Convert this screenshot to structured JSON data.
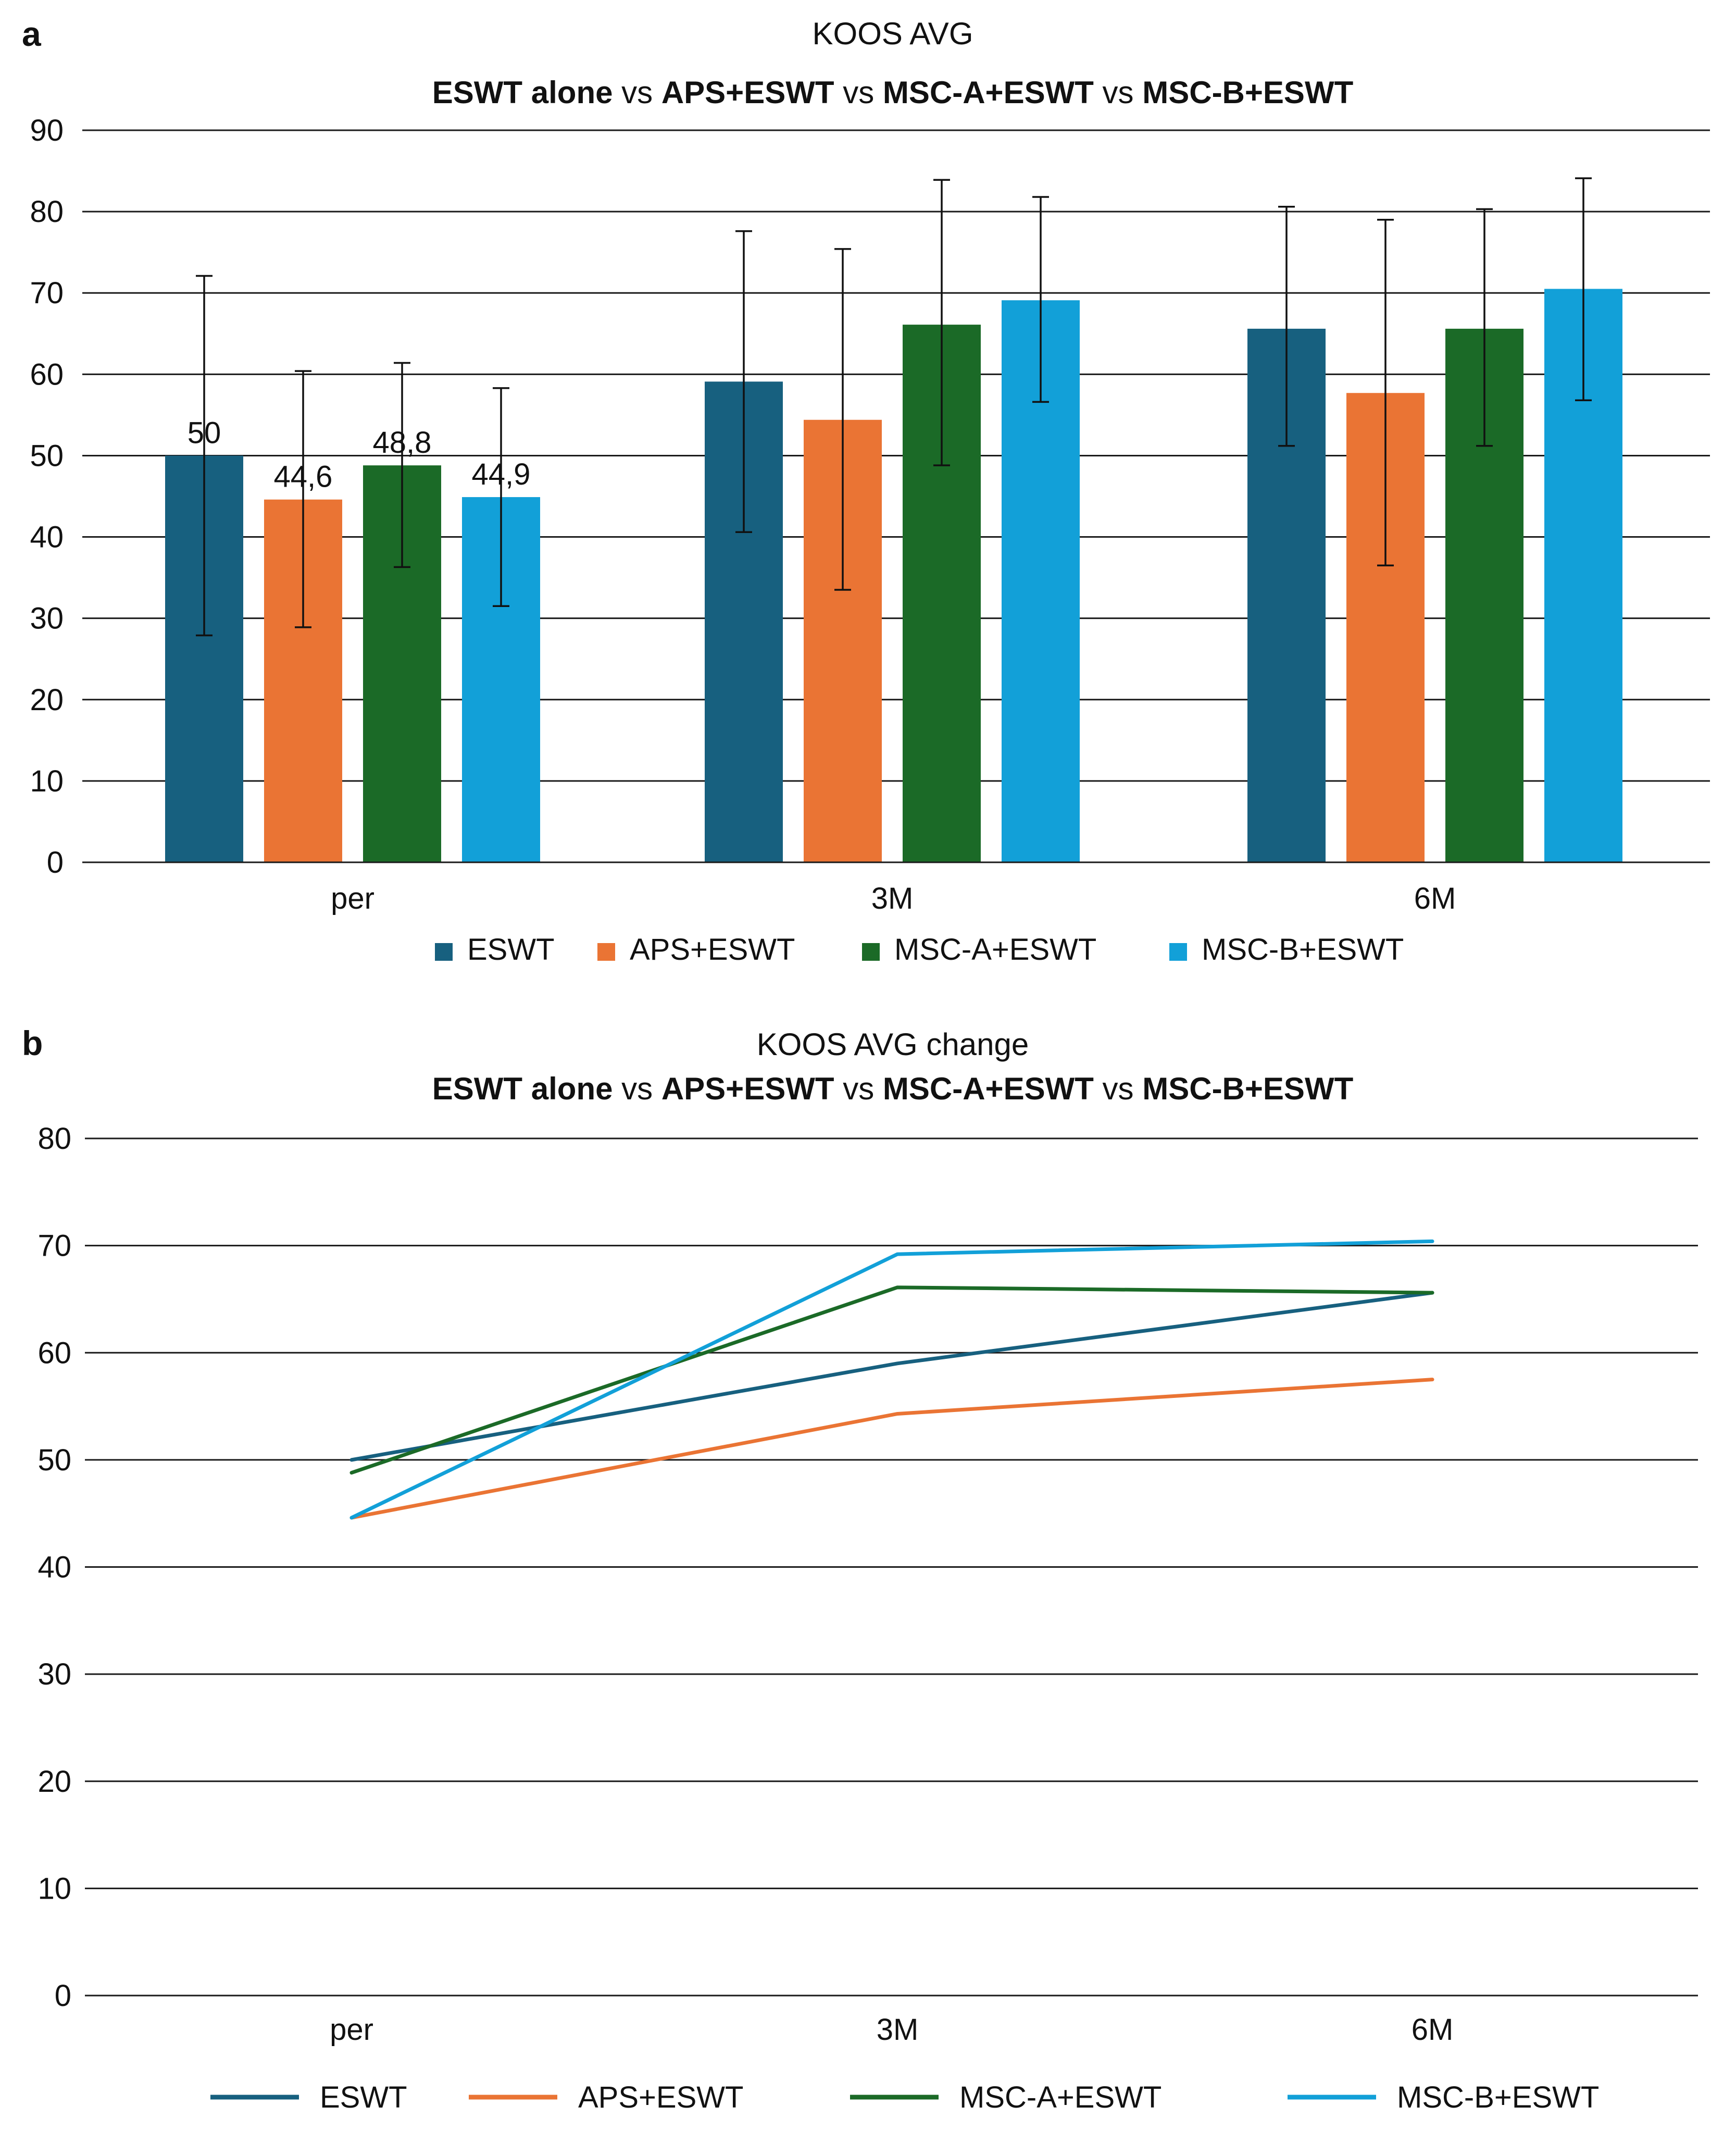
{
  "chart_data": [
    {
      "panel_label": "a",
      "type": "bar",
      "title": "KOOS AVG",
      "subtitle_parts": [
        {
          "text": "ESWT alone",
          "bold": true
        },
        {
          "text": " vs ",
          "bold": false
        },
        {
          "text": "APS+ESWT",
          "bold": true
        },
        {
          "text": " vs ",
          "bold": false
        },
        {
          "text": "MSC-A+ESWT",
          "bold": true
        },
        {
          "text": " vs ",
          "bold": false
        },
        {
          "text": "MSC-B+ESWT",
          "bold": true
        }
      ],
      "xlabel": "",
      "ylabel": "",
      "ylim": [
        0,
        90
      ],
      "yticks": [
        0,
        10,
        20,
        30,
        40,
        50,
        60,
        70,
        80,
        90
      ],
      "grid": true,
      "legend_position": "bottom",
      "categories": [
        "per",
        "3M",
        "6M"
      ],
      "series": [
        {
          "name": "ESWT",
          "color": "#17607f",
          "values": [
            50,
            59.1,
            65.6
          ],
          "err_low": [
            27.9,
            40.6,
            51.2
          ],
          "err_high": [
            72.1,
            77.6,
            80.6
          ],
          "labels": [
            "50",
            "",
            ""
          ]
        },
        {
          "name": "APS+ESWT",
          "color": "#ea7434",
          "values": [
            44.6,
            54.4,
            57.7
          ],
          "err_low": [
            28.9,
            33.5,
            36.5
          ],
          "err_high": [
            60.4,
            75.4,
            79.0
          ],
          "labels": [
            "44,6",
            "",
            ""
          ]
        },
        {
          "name": "MSC-A+ESWT",
          "color": "#1b6a27",
          "values": [
            48.8,
            66.1,
            65.6
          ],
          "err_low": [
            36.3,
            48.8,
            51.2
          ],
          "err_high": [
            61.4,
            83.9,
            80.3
          ],
          "labels": [
            "48,8",
            "",
            ""
          ]
        },
        {
          "name": "MSC-B+ESWT",
          "color": "#12a0d8",
          "values": [
            44.9,
            69.1,
            70.5
          ],
          "err_low": [
            31.5,
            56.6,
            56.8
          ],
          "err_high": [
            58.3,
            81.8,
            84.1
          ],
          "labels": [
            "44,9",
            "",
            ""
          ]
        }
      ]
    },
    {
      "panel_label": "b",
      "type": "line",
      "title": "KOOS AVG change",
      "subtitle_parts": [
        {
          "text": "ESWT alone",
          "bold": true
        },
        {
          "text": " vs ",
          "bold": false
        },
        {
          "text": "APS+ESWT",
          "bold": true
        },
        {
          "text": " vs ",
          "bold": false
        },
        {
          "text": "MSC-A+ESWT",
          "bold": true
        },
        {
          "text": " vs ",
          "bold": false
        },
        {
          "text": "MSC-B+ESWT",
          "bold": true
        }
      ],
      "xlabel": "",
      "ylabel": "",
      "ylim": [
        0,
        80
      ],
      "yticks": [
        0,
        10,
        20,
        30,
        40,
        50,
        60,
        70,
        80
      ],
      "grid": true,
      "legend_position": "bottom",
      "categories": [
        "per",
        "3M",
        "6M"
      ],
      "series": [
        {
          "name": "ESWT",
          "color": "#17607f",
          "values": [
            50,
            59,
            65.6
          ]
        },
        {
          "name": "APS+ESWT",
          "color": "#ea7434",
          "values": [
            44.6,
            54.3,
            57.5
          ]
        },
        {
          "name": "MSC-A+ESWT",
          "color": "#1b6a27",
          "values": [
            48.8,
            66.1,
            65.6
          ]
        },
        {
          "name": "MSC-B+ESWT",
          "color": "#12a0d8",
          "values": [
            44.6,
            69.2,
            70.4
          ]
        }
      ]
    }
  ]
}
